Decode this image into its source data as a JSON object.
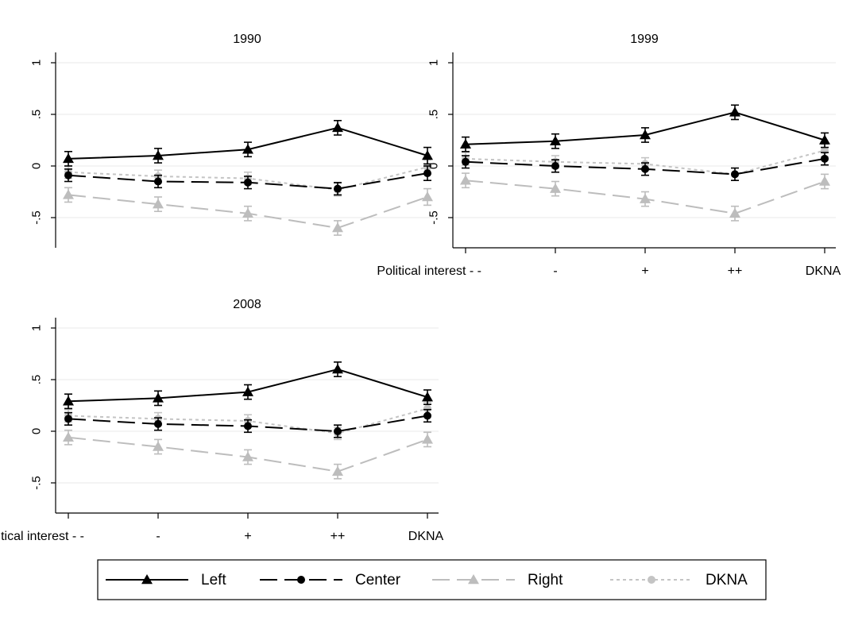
{
  "chart_data": [
    {
      "type": "line",
      "title": "1990",
      "categories": [
        "Political interest - -",
        "-",
        "+",
        "++",
        "DKNA"
      ],
      "show_x_labels": false,
      "ylim": [
        -0.8,
        1.1
      ],
      "yticks": [
        -0.5,
        0,
        0.5,
        1
      ],
      "ytick_labels": [
        "-.5",
        "0",
        ".5",
        "1"
      ],
      "series": [
        {
          "name": "Left",
          "values": [
            0.07,
            0.1,
            0.16,
            0.37,
            0.1
          ],
          "ci": [
            0.07,
            0.07,
            0.07,
            0.07,
            0.08
          ]
        },
        {
          "name": "Center",
          "values": [
            -0.09,
            -0.15,
            -0.16,
            -0.22,
            -0.07
          ],
          "ci": [
            0.06,
            0.06,
            0.06,
            0.06,
            0.07
          ]
        },
        {
          "name": "Right",
          "values": [
            -0.28,
            -0.37,
            -0.46,
            -0.6,
            -0.3
          ],
          "ci": [
            0.07,
            0.07,
            0.07,
            0.07,
            0.08
          ]
        },
        {
          "name": "DKNA",
          "values": [
            -0.06,
            -0.1,
            -0.12,
            -0.23,
            -0.01
          ],
          "ci": [
            0.06,
            0.06,
            0.06,
            0.06,
            0.07
          ]
        }
      ]
    },
    {
      "type": "line",
      "title": "1999",
      "categories": [
        "Political interest - -",
        "-",
        "+",
        "++",
        "DKNA"
      ],
      "show_x_labels": true,
      "ylim": [
        -0.8,
        1.1
      ],
      "yticks": [
        -0.5,
        0,
        0.5,
        1
      ],
      "ytick_labels": [
        "-.5",
        "0",
        ".5",
        "1"
      ],
      "series": [
        {
          "name": "Left",
          "values": [
            0.21,
            0.24,
            0.3,
            0.52,
            0.25
          ],
          "ci": [
            0.07,
            0.07,
            0.07,
            0.07,
            0.07
          ]
        },
        {
          "name": "Center",
          "values": [
            0.04,
            0.0,
            -0.03,
            -0.08,
            0.07
          ],
          "ci": [
            0.06,
            0.06,
            0.06,
            0.06,
            0.06
          ]
        },
        {
          "name": "Right",
          "values": [
            -0.14,
            -0.22,
            -0.32,
            -0.46,
            -0.15
          ],
          "ci": [
            0.07,
            0.07,
            0.07,
            0.07,
            0.07
          ]
        },
        {
          "name": "DKNA",
          "values": [
            0.07,
            0.04,
            0.02,
            -0.08,
            0.15
          ],
          "ci": [
            0.06,
            0.06,
            0.06,
            0.06,
            0.06
          ]
        }
      ]
    },
    {
      "type": "line",
      "title": "2008",
      "categories": [
        "Political interest - -",
        "-",
        "+",
        "++",
        "DKNA"
      ],
      "show_x_labels": true,
      "ylim": [
        -0.8,
        1.1
      ],
      "yticks": [
        -0.5,
        0,
        0.5,
        1
      ],
      "ytick_labels": [
        "-.5",
        "0",
        ".5",
        "1"
      ],
      "series": [
        {
          "name": "Left",
          "values": [
            0.29,
            0.32,
            0.38,
            0.6,
            0.33
          ],
          "ci": [
            0.07,
            0.07,
            0.07,
            0.07,
            0.07
          ]
        },
        {
          "name": "Center",
          "values": [
            0.12,
            0.07,
            0.05,
            0.0,
            0.15
          ],
          "ci": [
            0.06,
            0.06,
            0.06,
            0.06,
            0.06
          ]
        },
        {
          "name": "Right",
          "values": [
            -0.06,
            -0.15,
            -0.25,
            -0.39,
            -0.08
          ],
          "ci": [
            0.07,
            0.07,
            0.07,
            0.07,
            0.07
          ]
        },
        {
          "name": "DKNA",
          "values": [
            0.15,
            0.12,
            0.1,
            -0.02,
            0.22
          ],
          "ci": [
            0.06,
            0.06,
            0.06,
            0.06,
            0.06
          ]
        }
      ]
    }
  ],
  "legend": {
    "placement": "bottom",
    "items": [
      {
        "label": "Left",
        "series": "Left"
      },
      {
        "label": "Center",
        "series": "Center"
      },
      {
        "label": "Right",
        "series": "Right"
      },
      {
        "label": "DKNA",
        "series": "DKNA"
      }
    ]
  },
  "styles": {
    "Left": {
      "color": "#000000",
      "dash": "none",
      "marker": "triangle"
    },
    "Center": {
      "color": "#000000",
      "dash": "long-dash",
      "marker": "circle"
    },
    "Right": {
      "color": "#bdbdbd",
      "dash": "long-dash",
      "marker": "triangle"
    },
    "DKNA": {
      "color": "#c4c4c4",
      "dash": "dotted",
      "marker": "circle"
    }
  },
  "grid": true,
  "grid_color": "#e8e8e8"
}
